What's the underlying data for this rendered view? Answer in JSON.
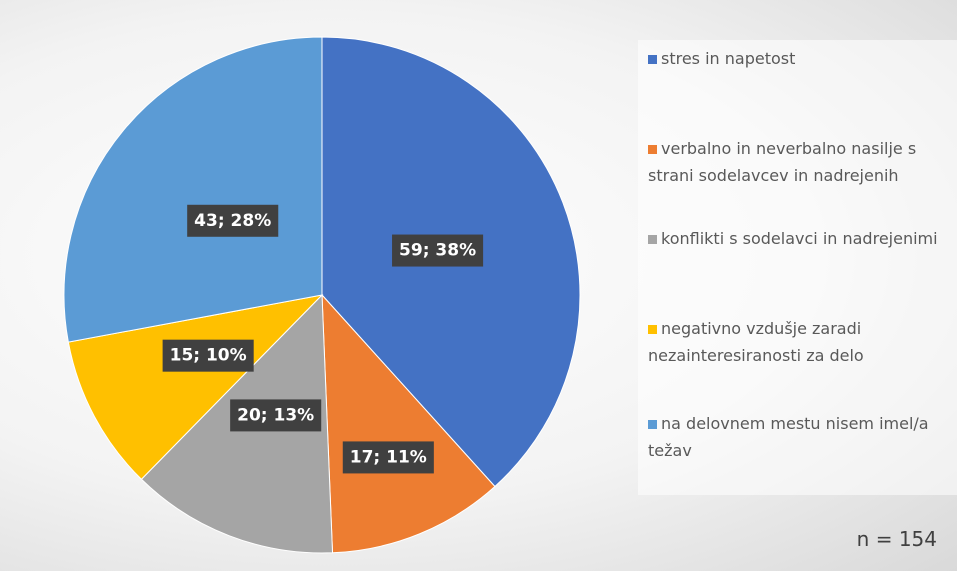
{
  "chart_data": {
    "type": "pie",
    "categories": [
      "stres in napetost",
      "verbalno in neverbalno nasilje s strani sodelavcev in nadrejenih",
      "konflikti s sodelavci in nadrejenimi",
      "negativno vzdušje zaradi nezainteresiranosti za delo",
      "na delovnem mestu nisem imel/a težav"
    ],
    "values": [
      59,
      17,
      20,
      15,
      43
    ],
    "value_labels": [
      "59; 38%",
      "17; 11%",
      "20; 13%",
      "15; 10%",
      "43; 28%"
    ],
    "colors": [
      "#4472c4",
      "#ed7d31",
      "#a5a5a5",
      "#ffc000",
      "#5b9bd5"
    ],
    "legend": "right",
    "annotations": [
      "n = 154"
    ]
  }
}
